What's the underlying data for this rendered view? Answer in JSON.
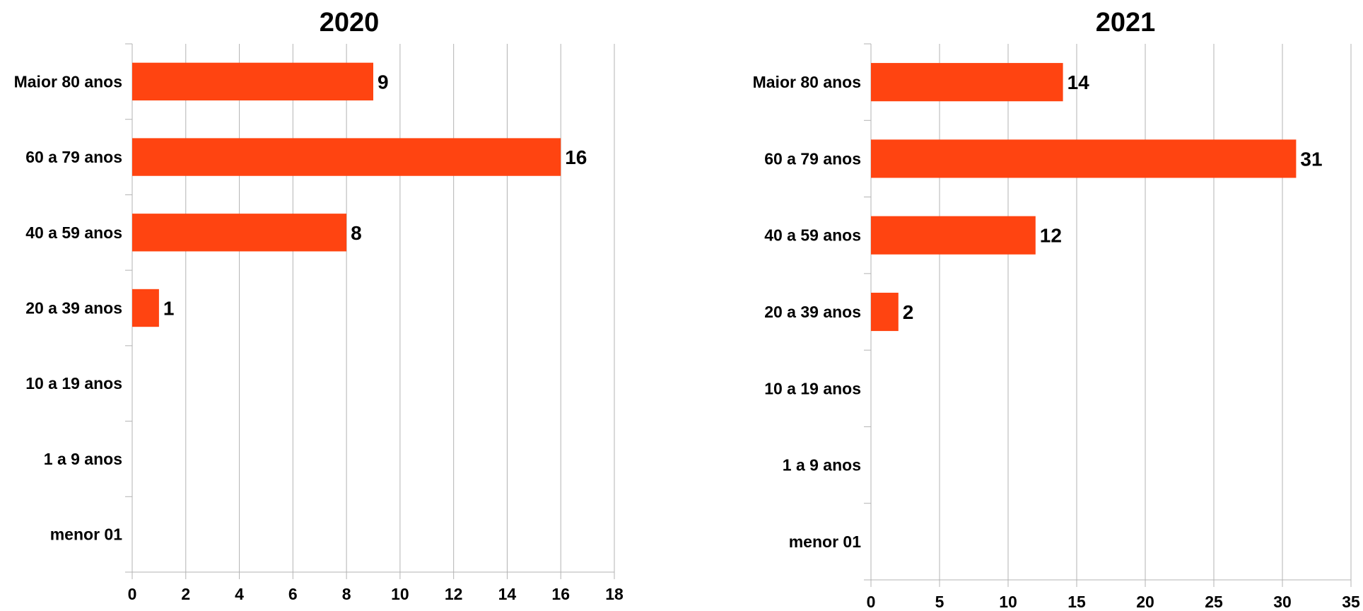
{
  "chart_data": [
    {
      "type": "bar",
      "orientation": "horizontal",
      "title": "2020",
      "categories": [
        "menor 01",
        "1 a 9 anos",
        "10 a 19 anos",
        "20 a 39 anos",
        "40 a 59 anos",
        "60 a 79 anos",
        "Maior 80 anos"
      ],
      "values": [
        0,
        0,
        0,
        1,
        8,
        16,
        9
      ],
      "data_labels": [
        "",
        "",
        "",
        "1",
        "8",
        "16",
        "9"
      ],
      "xlim": [
        0,
        18
      ],
      "xticks": [
        0,
        2,
        4,
        6,
        8,
        10,
        12,
        14,
        16,
        18
      ],
      "xlabel": "",
      "ylabel": "",
      "grid": "vertical",
      "legend": "none",
      "bar_color": "#ff4411"
    },
    {
      "type": "bar",
      "orientation": "horizontal",
      "title": "2021",
      "categories": [
        "menor 01",
        "1 a 9 anos",
        "10 a 19 anos",
        "20 a 39 anos",
        "40 a 59 anos",
        "60 a 79 anos",
        "Maior 80 anos"
      ],
      "values": [
        0,
        0,
        0,
        2,
        12,
        31,
        14
      ],
      "data_labels": [
        "",
        "",
        "",
        "2",
        "12",
        "31",
        "14"
      ],
      "xlim": [
        0,
        35
      ],
      "xticks": [
        0,
        5,
        10,
        15,
        20,
        25,
        30,
        35
      ],
      "xlabel": "",
      "ylabel": "",
      "grid": "vertical",
      "legend": "none",
      "bar_color": "#ff4411"
    }
  ],
  "colors": {
    "bar": "#ff4411",
    "grid": "#b3b3b3",
    "text": "#000000"
  }
}
